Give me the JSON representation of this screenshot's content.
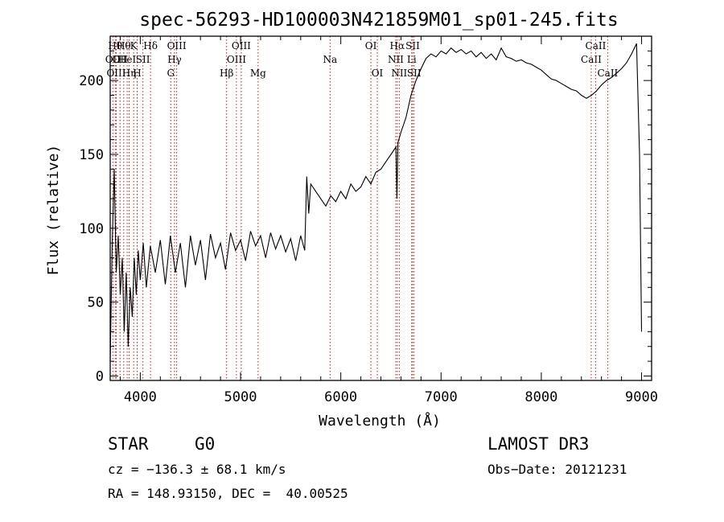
{
  "chart_data": {
    "type": "line",
    "title": "spec-56293-HD100003N421859M01_sp01-245.fits",
    "xlabel": "Wavelength (Å)",
    "ylabel": "Flux (relative)",
    "xlim": [
      3700,
      9100
    ],
    "ylim": [
      -3,
      230
    ],
    "xticks": [
      4000,
      5000,
      6000,
      7000,
      8000,
      9000
    ],
    "yticks": [
      0,
      50,
      100,
      150,
      200
    ],
    "grid": false,
    "series": [
      {
        "name": "flux",
        "x": [
          3700,
          3720,
          3740,
          3760,
          3780,
          3800,
          3820,
          3840,
          3860,
          3880,
          3900,
          3920,
          3940,
          3960,
          3980,
          4000,
          4030,
          4060,
          4100,
          4150,
          4200,
          4250,
          4300,
          4350,
          4400,
          4450,
          4500,
          4550,
          4600,
          4650,
          4700,
          4750,
          4800,
          4850,
          4900,
          4950,
          5000,
          5050,
          5100,
          5150,
          5200,
          5250,
          5300,
          5350,
          5400,
          5450,
          5500,
          5550,
          5600,
          5640,
          5660,
          5680,
          5700,
          5750,
          5800,
          5850,
          5900,
          5950,
          6000,
          6050,
          6100,
          6150,
          6200,
          6250,
          6300,
          6350,
          6400,
          6450,
          6500,
          6550,
          6560,
          6570,
          6600,
          6650,
          6700,
          6750,
          6800,
          6850,
          6900,
          6950,
          7000,
          7050,
          7100,
          7150,
          7200,
          7250,
          7300,
          7350,
          7400,
          7450,
          7500,
          7550,
          7600,
          7650,
          7700,
          7750,
          7800,
          7850,
          7900,
          7950,
          8000,
          8050,
          8100,
          8150,
          8200,
          8250,
          8300,
          8350,
          8400,
          8450,
          8500,
          8550,
          8600,
          8650,
          8700,
          8750,
          8800,
          8850,
          8900,
          8950,
          8980,
          9000
        ],
        "y": [
          10,
          90,
          140,
          70,
          95,
          55,
          80,
          30,
          70,
          20,
          60,
          40,
          80,
          55,
          85,
          65,
          90,
          60,
          88,
          70,
          92,
          62,
          95,
          70,
          90,
          60,
          95,
          75,
          92,
          65,
          96,
          80,
          90,
          72,
          97,
          85,
          92,
          78,
          98,
          88,
          95,
          80,
          97,
          86,
          95,
          84,
          93,
          78,
          95,
          85,
          135,
          110,
          130,
          125,
          120,
          115,
          122,
          118,
          125,
          120,
          130,
          125,
          128,
          135,
          130,
          138,
          140,
          145,
          150,
          155,
          120,
          158,
          165,
          175,
          190,
          200,
          208,
          215,
          218,
          216,
          220,
          218,
          222,
          219,
          221,
          218,
          220,
          216,
          219,
          215,
          218,
          214,
          222,
          216,
          215,
          213,
          214,
          212,
          211,
          209,
          207,
          204,
          201,
          200,
          198,
          196,
          194,
          193,
          190,
          188,
          190,
          193,
          197,
          200,
          202,
          205,
          208,
          212,
          218,
          225,
          150,
          30
        ]
      }
    ],
    "lines": [
      {
        "x": 3727,
        "row": 1,
        "label": "OII"
      },
      {
        "x": 3750,
        "row": 0,
        "label": "Hθ"
      },
      {
        "x": 3760,
        "row": 2,
        "label": "OIII"
      },
      {
        "x": 3798,
        "row": 1,
        "label": "OII"
      },
      {
        "x": 3835,
        "row": 0,
        "label": "Hθ"
      },
      {
        "x": 3869,
        "row": 1,
        "label": "HeI"
      },
      {
        "x": 3889,
        "row": 2,
        "label": "Hη"
      },
      {
        "x": 3934,
        "row": 0,
        "label": "K"
      },
      {
        "x": 3969,
        "row": 2,
        "label": "H"
      },
      {
        "x": 4026,
        "row": 1,
        "label": "SII"
      },
      {
        "x": 4102,
        "row": 0,
        "label": "Hδ"
      },
      {
        "x": 4304,
        "row": 2,
        "label": "G"
      },
      {
        "x": 4341,
        "row": 1,
        "label": "Hγ"
      },
      {
        "x": 4363,
        "row": 0,
        "label": "OIII"
      },
      {
        "x": 4861,
        "row": 2,
        "label": "Hβ"
      },
      {
        "x": 4959,
        "row": 1,
        "label": "OIII"
      },
      {
        "x": 5007,
        "row": 0,
        "label": "OIII"
      },
      {
        "x": 5175,
        "row": 2,
        "label": "Mg"
      },
      {
        "x": 5893,
        "row": 1,
        "label": "Na"
      },
      {
        "x": 6300,
        "row": 0,
        "label": "OI"
      },
      {
        "x": 6364,
        "row": 2,
        "label": "OI"
      },
      {
        "x": 6548,
        "row": 1,
        "label": "NII"
      },
      {
        "x": 6563,
        "row": 0,
        "label": "Hα"
      },
      {
        "x": 6583,
        "row": 2,
        "label": "NII"
      },
      {
        "x": 6707,
        "row": 1,
        "label": "Li"
      },
      {
        "x": 6717,
        "row": 0,
        "label": "SII"
      },
      {
        "x": 6731,
        "row": 2,
        "label": "SII"
      },
      {
        "x": 8498,
        "row": 1,
        "label": "CaII"
      },
      {
        "x": 8542,
        "row": 0,
        "label": "CaII"
      },
      {
        "x": 8662,
        "row": 2,
        "label": "CaII"
      }
    ]
  },
  "info": {
    "class": "STAR",
    "subclass": "G0",
    "survey": "LAMOST DR3",
    "cz": "cz = −136.3 ± 68.1 km/s",
    "obs_date": "Obs−Date: 20121231",
    "radec": "RA = 148.93150, DEC =  40.00525"
  }
}
